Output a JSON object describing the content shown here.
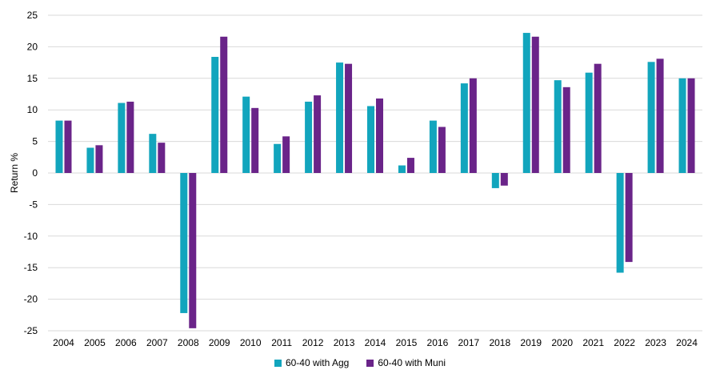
{
  "chart_data": {
    "type": "bar",
    "ylabel": "Return %",
    "xlabel": "",
    "title": "",
    "ylim": [
      -25,
      25
    ],
    "yticks": [
      25,
      20,
      15,
      10,
      5,
      0,
      -5,
      -10,
      -15,
      -20,
      -25
    ],
    "grid": true,
    "legend_position": "bottom-center",
    "categories": [
      "2004",
      "2005",
      "2006",
      "2007",
      "2008",
      "2009",
      "2010",
      "2011",
      "2012",
      "2013",
      "2014",
      "2015",
      "2016",
      "2017",
      "2018",
      "2019",
      "2020",
      "2021",
      "2022",
      "2023",
      "2024"
    ],
    "series": [
      {
        "name": "60-40 with Agg",
        "color": "#12a5bd",
        "values": [
          8.3,
          4.0,
          11.1,
          6.2,
          -22.2,
          18.4,
          12.1,
          4.6,
          11.3,
          17.5,
          10.6,
          1.2,
          8.3,
          14.2,
          -2.4,
          22.2,
          14.7,
          15.9,
          -15.8,
          17.6,
          15.0
        ]
      },
      {
        "name": "60-40 with Muni",
        "color": "#6a2489",
        "values": [
          8.3,
          4.4,
          11.3,
          4.8,
          -24.6,
          21.6,
          10.3,
          5.8,
          12.3,
          17.3,
          11.8,
          2.4,
          7.3,
          15.0,
          -2.0,
          21.6,
          13.6,
          17.3,
          -14.1,
          18.1,
          15.0
        ]
      }
    ]
  }
}
